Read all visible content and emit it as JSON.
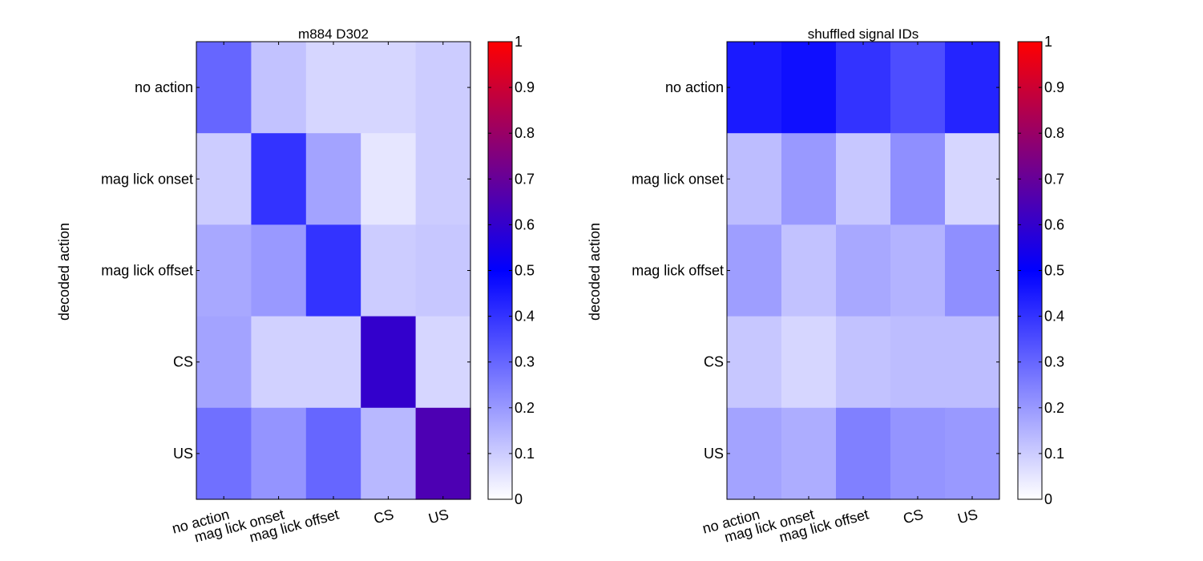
{
  "colormap": {
    "stops": [
      {
        "v": 0.0,
        "color": "#ffffff"
      },
      {
        "v": 0.5,
        "color": "#0000ff"
      },
      {
        "v": 1.0,
        "color": "#ff0000"
      }
    ]
  },
  "chart_data": [
    {
      "type": "heatmap",
      "title": "m884 D302",
      "ylabel": "decoded action",
      "xlabel": "",
      "x_categories": [
        "no action",
        "mag lick  onset",
        "mag lick  offset",
        "CS",
        "US"
      ],
      "y_categories": [
        "no action",
        "mag lick  onset",
        "mag lick  offset",
        "CS",
        "US"
      ],
      "values": [
        [
          0.3,
          0.12,
          0.08,
          0.08,
          0.1
        ],
        [
          0.1,
          0.4,
          0.18,
          0.05,
          0.1
        ],
        [
          0.17,
          0.2,
          0.4,
          0.1,
          0.11
        ],
        [
          0.18,
          0.09,
          0.09,
          0.6,
          0.08
        ],
        [
          0.28,
          0.21,
          0.3,
          0.14,
          0.65
        ]
      ],
      "clim": [
        0,
        1
      ],
      "colorbar_ticks": [
        "0",
        "0.1",
        "0.2",
        "0.3",
        "0.4",
        "0.5",
        "0.6",
        "0.7",
        "0.8",
        "0.9",
        "1"
      ]
    },
    {
      "type": "heatmap",
      "title": "shuffled signal IDs",
      "ylabel": "decoded action",
      "xlabel": "",
      "x_categories": [
        "no action",
        "mag lick  onset",
        "mag lick  offset",
        "CS",
        "US"
      ],
      "y_categories": [
        "no action",
        "mag lick  onset",
        "mag lick  offset",
        "CS",
        "US"
      ],
      "values": [
        [
          0.45,
          0.47,
          0.4,
          0.35,
          0.43
        ],
        [
          0.13,
          0.2,
          0.11,
          0.22,
          0.08
        ],
        [
          0.19,
          0.12,
          0.17,
          0.15,
          0.22
        ],
        [
          0.11,
          0.08,
          0.12,
          0.13,
          0.13
        ],
        [
          0.18,
          0.16,
          0.25,
          0.21,
          0.2
        ]
      ],
      "clim": [
        0,
        1
      ],
      "colorbar_ticks": [
        "0",
        "0.1",
        "0.2",
        "0.3",
        "0.4",
        "0.5",
        "0.6",
        "0.7",
        "0.8",
        "0.9",
        "1"
      ]
    }
  ]
}
